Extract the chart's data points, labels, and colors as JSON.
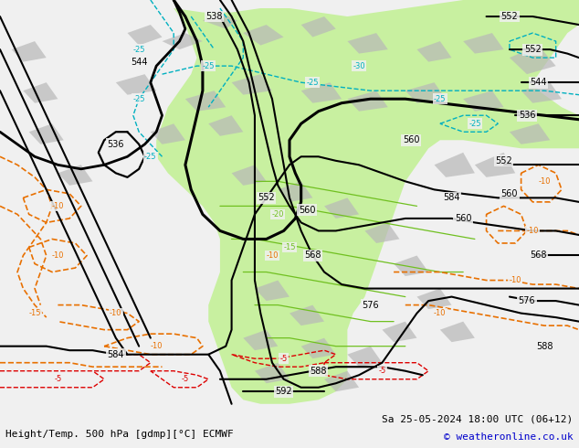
{
  "title_left": "Height/Temp. 500 hPa [gdmp][°C] ECMWF",
  "title_right": "Sa 25-05-2024 18:00 UTC (06+12)",
  "copyright": "© weatheronline.co.uk",
  "bg_color": "#f0f0f0",
  "map_bg": "#f0f0f0",
  "green_fill": "#c8f0a0",
  "gray_fill": "#b8b8b8",
  "figsize": [
    6.34,
    4.9
  ],
  "dpi": 100
}
